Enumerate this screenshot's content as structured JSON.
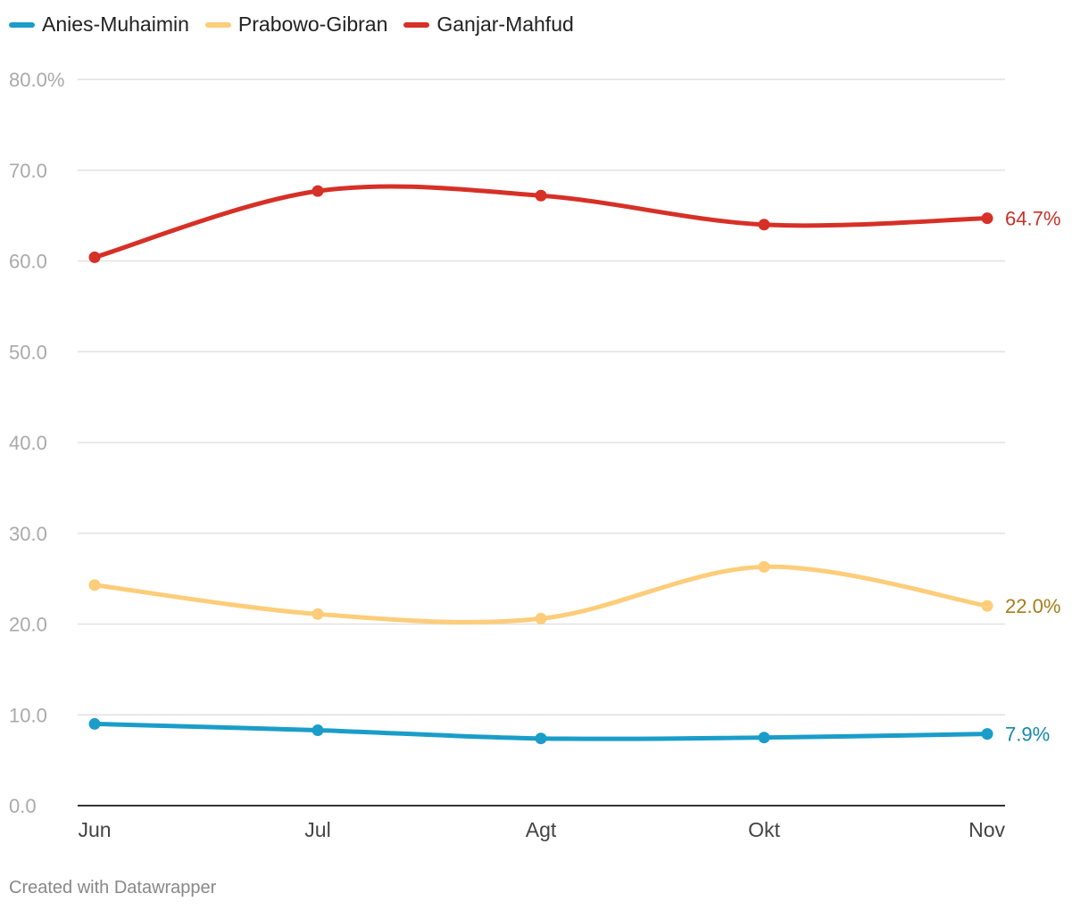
{
  "legend": {
    "items": [
      {
        "label": "Anies-Muhaimin",
        "color": "#1a9dc9"
      },
      {
        "label": "Prabowo-Gibran",
        "color": "#fdcd7a"
      },
      {
        "label": "Ganjar-Mahfud",
        "color": "#d63027"
      }
    ]
  },
  "footer": {
    "credit": "Created with Datawrapper"
  },
  "chart_data": {
    "type": "line",
    "title": "",
    "xlabel": "",
    "ylabel": "",
    "categories": [
      "Jun",
      "Jul",
      "Agt",
      "Okt",
      "Nov"
    ],
    "ylim": [
      0,
      80
    ],
    "y_ticks": [
      0,
      10,
      20,
      30,
      40,
      50,
      60,
      70,
      80
    ],
    "y_tick_labels": [
      "0.0",
      "10.0",
      "20.0",
      "30.0",
      "40.0",
      "50.0",
      "60.0",
      "70.0",
      "80.0%"
    ],
    "grid": true,
    "legend_position": "top-left",
    "series": [
      {
        "name": "Anies-Muhaimin",
        "color": "#1a9dc9",
        "label_color": "#1488ad",
        "values": [
          9.0,
          8.3,
          7.4,
          7.5,
          7.9
        ],
        "end_label": "7.9%"
      },
      {
        "name": "Prabowo-Gibran",
        "color": "#fdcd7a",
        "label_color": "#a67c1a",
        "values": [
          24.3,
          21.1,
          20.6,
          26.3,
          22.0
        ],
        "end_label": "22.0%"
      },
      {
        "name": "Ganjar-Mahfud",
        "color": "#d63027",
        "label_color": "#c7312a",
        "values": [
          60.4,
          67.7,
          67.2,
          64.0,
          64.7
        ],
        "end_label": "64.7%"
      }
    ]
  }
}
